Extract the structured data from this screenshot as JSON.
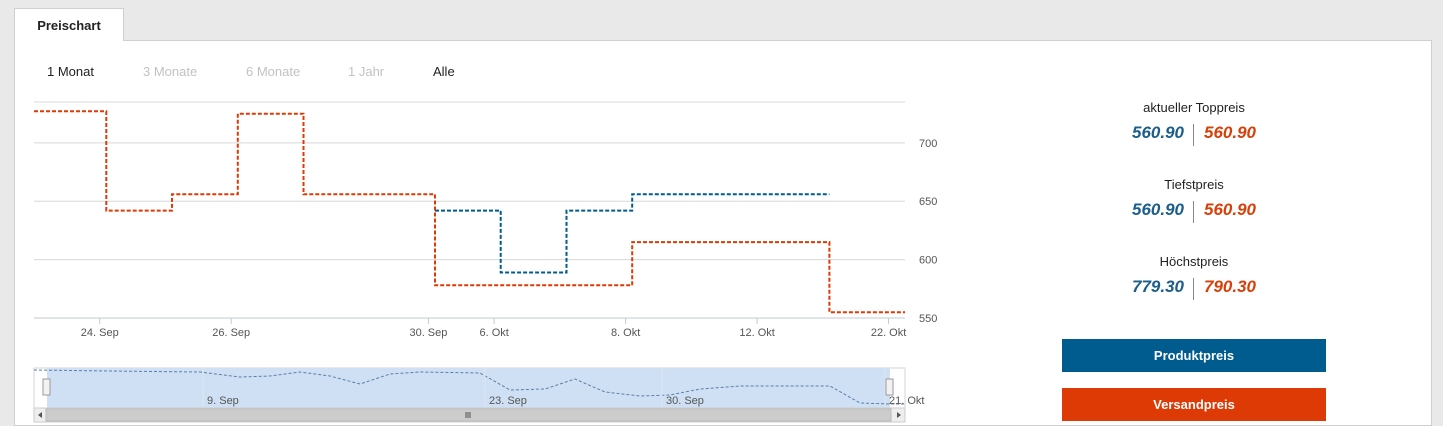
{
  "tab": {
    "label": "Preischart"
  },
  "ranges": [
    {
      "label": "1 Monat",
      "state": "active"
    },
    {
      "label": "3 Monate",
      "state": "disabled"
    },
    {
      "label": "6 Monate",
      "state": "disabled"
    },
    {
      "label": "1 Jahr",
      "state": "disabled"
    },
    {
      "label": "Alle",
      "state": "active"
    }
  ],
  "stats": {
    "current": {
      "label": "aktueller Toppreis",
      "product": "560.90",
      "shipping": "560.90"
    },
    "lowest": {
      "label": "Tiefstpreis",
      "product": "560.90",
      "shipping": "560.90"
    },
    "highest": {
      "label": "Höchstpreis",
      "product": "779.30",
      "shipping": "790.30"
    }
  },
  "legend": {
    "product": {
      "label": "Produktpreis",
      "color": "#005b8f"
    },
    "shipping": {
      "label": "Versandpreis",
      "color": "#dd3a06"
    }
  },
  "chart_data": {
    "type": "line",
    "step": true,
    "dashed": true,
    "ylim": [
      550,
      735
    ],
    "yticks": [
      550,
      600,
      650,
      700
    ],
    "y_axis_side": "right",
    "grid": true,
    "x_index_range": [
      0,
      13.25
    ],
    "x_ticks": [
      {
        "x": 1,
        "label": "24. Sep"
      },
      {
        "x": 3,
        "label": "26. Sep"
      },
      {
        "x": 6,
        "label": "30. Sep"
      },
      {
        "x": 7,
        "label": "6. Okt"
      },
      {
        "x": 9,
        "label": "8. Okt"
      },
      {
        "x": 11,
        "label": "12. Okt"
      },
      {
        "x": 13,
        "label": "22. Okt"
      }
    ],
    "series": [
      {
        "color": "#dd3a06",
        "points": [
          [
            0,
            727
          ],
          [
            1.1,
            727
          ],
          [
            1.1,
            642
          ],
          [
            2.1,
            642
          ],
          [
            2.1,
            656
          ],
          [
            3.1,
            656
          ],
          [
            3.1,
            725
          ],
          [
            4.1,
            725
          ],
          [
            4.1,
            656
          ],
          [
            6.1,
            656
          ],
          [
            6.1,
            578
          ],
          [
            9.1,
            578
          ],
          [
            9.1,
            615
          ],
          [
            12.1,
            615
          ],
          [
            12.1,
            555
          ],
          [
            13.25,
            555
          ]
        ]
      },
      {
        "color": "#005b8f",
        "points": [
          [
            6.1,
            642
          ],
          [
            7.1,
            642
          ],
          [
            7.1,
            589
          ],
          [
            8.1,
            589
          ],
          [
            8.1,
            642
          ],
          [
            9.1,
            642
          ],
          [
            9.1,
            656
          ],
          [
            12.1,
            656
          ]
        ]
      }
    ],
    "navigator": {
      "labels": [
        "9. Sep",
        "23. Sep",
        "30. Sep",
        "21. Okt"
      ]
    }
  }
}
